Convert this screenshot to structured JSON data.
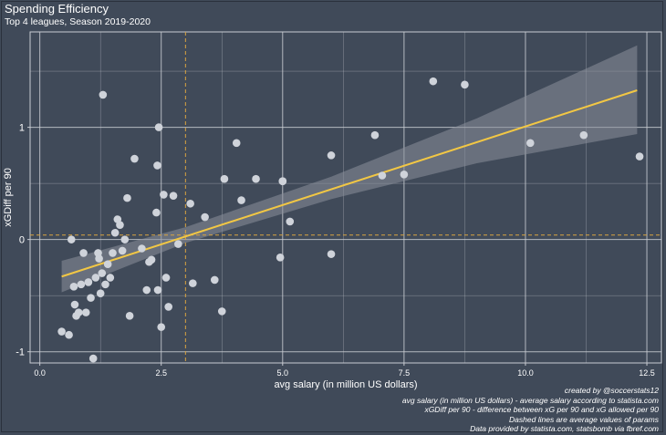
{
  "header": {
    "title": "Spending Efficiency",
    "subtitle": "Top 4 leagues, Season 2019-2020"
  },
  "caption": [
    "created by @soccerstats12",
    "avg salary (in million US dollars) - average salary according to statista.com",
    "xGDiff per 90 - difference between xG per 90 and xG allowed per 90",
    "Dashed lines are average values of params",
    "Data provided by statista.com, statsbomb via fbref.com"
  ],
  "colors": {
    "background": "#404a59",
    "grid": "#c9ccd2",
    "points": "#cfd3da",
    "trend": "#f2c744",
    "band": "#8a909b",
    "avg_line": "#d9a441"
  },
  "chart_data": {
    "type": "scatter",
    "title": "Spending Efficiency",
    "subtitle": "Top 4 leagues, Season 2019-2020",
    "xlabel": "avg salary (in million US dollars)",
    "ylabel": "xGDiff per 90",
    "xlim": [
      -0.2,
      12.8
    ],
    "ylim": [
      -1.1,
      1.85
    ],
    "xticks": [
      0,
      2.5,
      5,
      7.5,
      10,
      12.5
    ],
    "xtick_labels": [
      "0.0",
      "2.5",
      "5.0",
      "7.5",
      "10.0",
      "12.5"
    ],
    "yticks": [
      -1,
      0,
      1
    ],
    "ytick_labels": [
      "-1",
      "0",
      "1"
    ],
    "grid": true,
    "mean_x": 3.0,
    "mean_y": 0.04,
    "trend_line": {
      "x": [
        0.45,
        12.3
      ],
      "y": [
        -0.33,
        1.33
      ]
    },
    "confidence_band": {
      "x": [
        0.45,
        3.0,
        6.0,
        9.0,
        12.3
      ],
      "lower": [
        -0.47,
        -0.03,
        0.36,
        0.68,
        0.94
      ],
      "upper": [
        -0.19,
        0.11,
        0.56,
        1.08,
        1.73
      ]
    },
    "points": {
      "x": [
        0.45,
        0.6,
        0.65,
        0.7,
        0.72,
        0.75,
        0.8,
        0.85,
        0.9,
        0.95,
        1.0,
        1.05,
        1.1,
        1.15,
        1.2,
        1.22,
        1.25,
        1.28,
        1.3,
        1.35,
        1.4,
        1.45,
        1.5,
        1.55,
        1.6,
        1.65,
        1.7,
        1.75,
        1.8,
        1.85,
        1.95,
        2.1,
        2.2,
        2.25,
        2.3,
        2.4,
        2.42,
        2.43,
        2.45,
        2.5,
        2.55,
        2.6,
        2.65,
        2.75,
        2.85,
        3.1,
        3.15,
        3.4,
        3.6,
        3.75,
        3.8,
        4.05,
        4.15,
        4.45,
        4.95,
        5.0,
        5.0,
        5.15,
        6.0,
        6.0,
        6.9,
        7.05,
        7.5,
        8.1,
        8.75,
        10.1,
        11.2,
        12.35
      ],
      "y": [
        -0.82,
        -0.85,
        0.0,
        -0.42,
        -0.58,
        -0.68,
        -0.65,
        -0.4,
        -0.12,
        -0.65,
        -0.38,
        -0.52,
        -1.06,
        -0.34,
        -0.12,
        -0.17,
        -0.48,
        -0.3,
        1.29,
        -0.4,
        -0.22,
        -0.34,
        -0.12,
        0.06,
        0.18,
        0.13,
        -0.1,
        0.0,
        0.37,
        -0.68,
        0.72,
        -0.08,
        -0.45,
        -0.2,
        -0.18,
        0.24,
        0.66,
        -0.45,
        1.0,
        -0.78,
        0.4,
        -0.34,
        -0.6,
        0.39,
        -0.04,
        0.32,
        -0.39,
        0.2,
        -0.36,
        -0.64,
        0.54,
        0.86,
        0.35,
        0.54,
        -0.16,
        0.52,
        0.52,
        0.16,
        0.75,
        -0.13,
        0.93,
        0.57,
        0.58,
        1.41,
        1.38,
        0.86,
        0.93,
        0.74
      ]
    }
  }
}
